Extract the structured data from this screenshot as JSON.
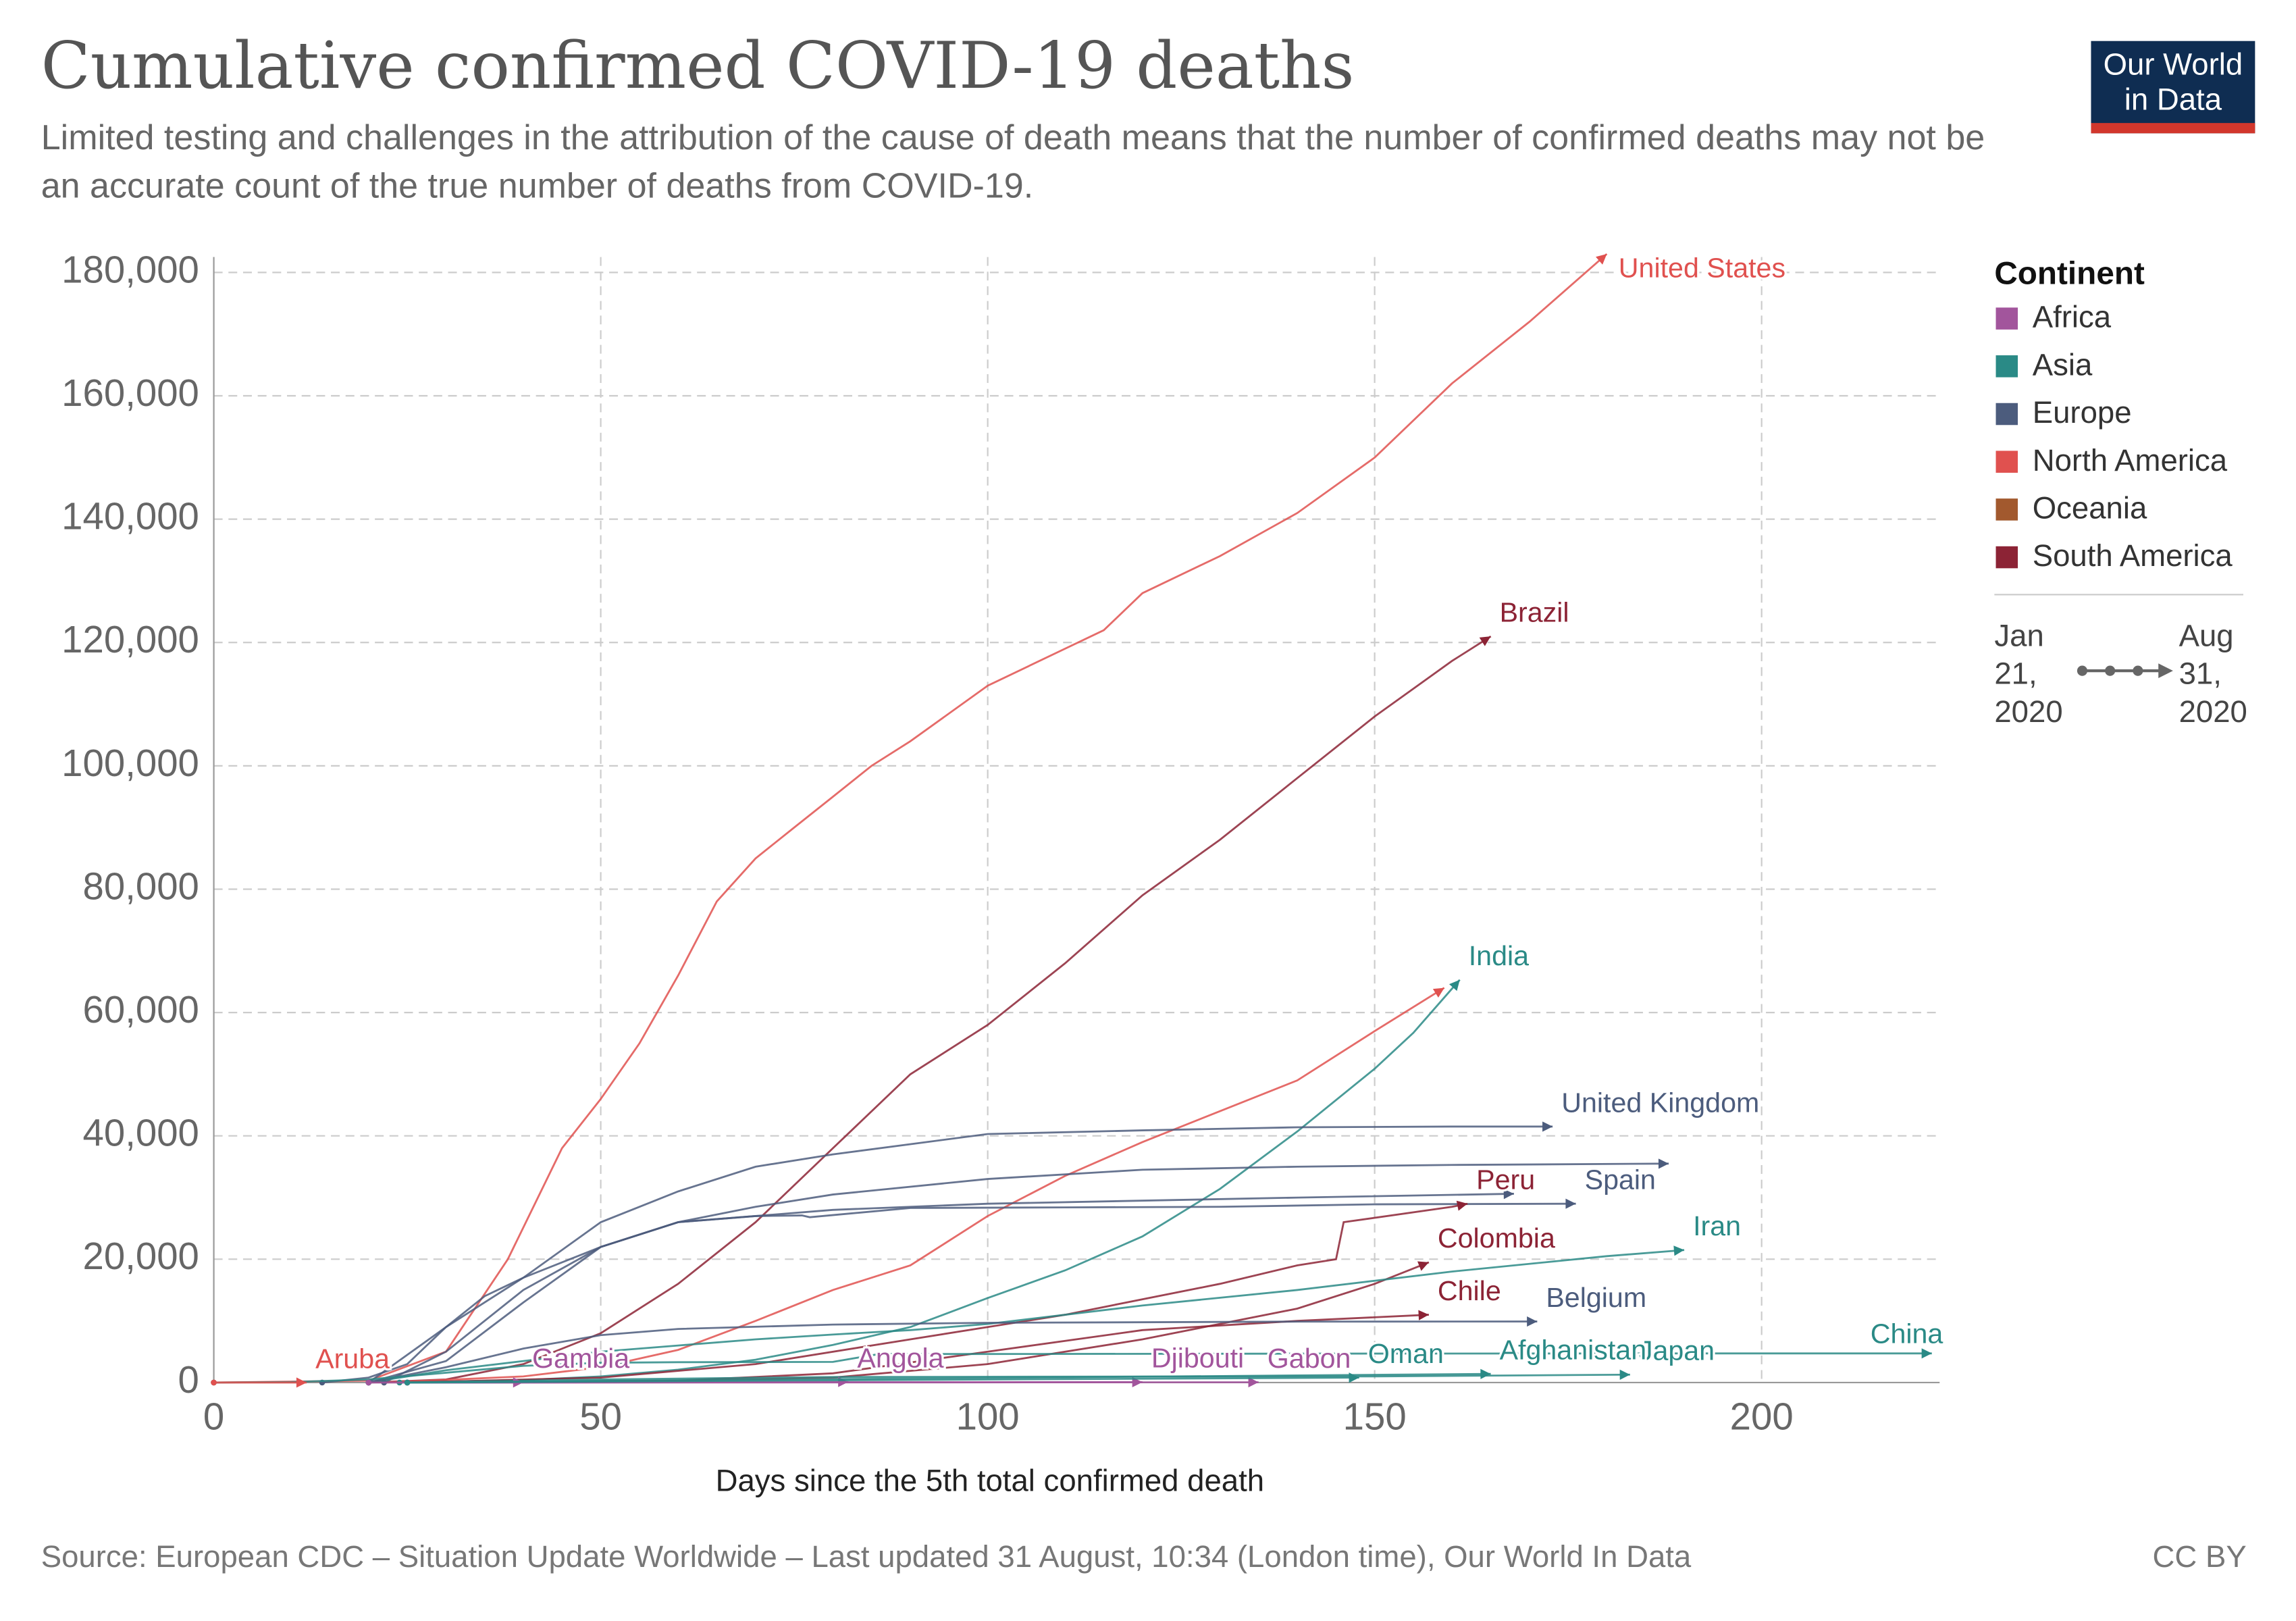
{
  "chart_data": {
    "type": "line",
    "title": "Cumulative confirmed COVID-19 deaths",
    "subtitle": "Limited testing and challenges in the attribution of the cause of death means that the number of confirmed deaths may not be an accurate count of the true number of deaths from COVID-19.",
    "logo": "Our World in Data",
    "xlabel": "Days since the 5th total confirmed death",
    "source": "Source: European CDC – Situation Update Worldwide – Last updated 31 August, 10:34 (London time), Our World In Data",
    "license": "CC BY",
    "xlim": [
      0,
      223
    ],
    "ylim": [
      0,
      182500
    ],
    "xticks": [
      0,
      50,
      100,
      150,
      200
    ],
    "yticks": [
      0,
      {
        "value": 20000,
        "label": "20,000"
      },
      {
        "value": 40000,
        "label": "40,000"
      },
      {
        "value": 60000,
        "label": "60,000"
      },
      {
        "value": 80000,
        "label": "80,000"
      },
      {
        "value": 100000,
        "label": "100,000"
      },
      {
        "value": 120000,
        "label": "120,000"
      },
      {
        "value": 140000,
        "label": "140,000"
      },
      {
        "value": 160000,
        "label": "160,000"
      },
      {
        "value": 180000,
        "label": "180,000"
      }
    ],
    "grid": true,
    "legend": {
      "title": "Continent",
      "items": [
        {
          "name": "Africa",
          "color": "#a2559c"
        },
        {
          "name": "Asia",
          "color": "#2a8a86"
        },
        {
          "name": "Europe",
          "color": "#4c5c7d"
        },
        {
          "name": "North America",
          "color": "#e0514f"
        },
        {
          "name": "Oceania",
          "color": "#a2592e"
        },
        {
          "name": "South America",
          "color": "#8c2335"
        }
      ]
    },
    "time_range": [
      "Jan 21, 2020",
      "Aug 31, 2020"
    ],
    "series": [
      {
        "name": "United States",
        "color": "#e0514f",
        "x": [
          0,
          20,
          30,
          38,
          45,
          50,
          55,
          60,
          65,
          70,
          75,
          80,
          85,
          90,
          100,
          110,
          115,
          120,
          130,
          140,
          150,
          160,
          170,
          180
        ],
        "values": [
          5,
          300,
          5000,
          20000,
          38000,
          46000,
          55000,
          66000,
          78000,
          85000,
          90000,
          95000,
          100000,
          104000,
          113000,
          119000,
          122000,
          128000,
          134000,
          141000,
          150000,
          162000,
          172000,
          183000
        ]
      },
      {
        "name": "Brazil",
        "color": "#8c2335",
        "x": [
          20,
          30,
          40,
          50,
          60,
          70,
          80,
          90,
          100,
          110,
          120,
          130,
          140,
          150,
          160,
          165
        ],
        "values": [
          5,
          500,
          3000,
          8000,
          16000,
          26000,
          38000,
          50000,
          58000,
          68000,
          79000,
          88000,
          98000,
          108000,
          117000,
          121000
        ]
      },
      {
        "color": "#e0514f",
        "x": [
          22,
          40,
          50,
          60,
          70,
          80,
          90,
          100,
          110,
          120,
          130,
          140,
          150,
          159
        ],
        "values": [
          5,
          1000,
          2500,
          5300,
          10000,
          15000,
          19000,
          27000,
          33500,
          39000,
          44000,
          49000,
          57000,
          64000
        ]
      },
      {
        "name": "India",
        "color": "#2a8a86",
        "x": [
          24,
          40,
          50,
          60,
          70,
          80,
          90,
          100,
          110,
          120,
          130,
          140,
          150,
          155,
          161
        ],
        "values": [
          5,
          400,
          1000,
          2100,
          3700,
          6100,
          9000,
          13700,
          18200,
          23700,
          31400,
          40700,
          50900,
          56700,
          65300
        ]
      },
      {
        "name": "United Kingdom",
        "color": "#4c5c7d",
        "x": [
          14,
          20,
          25,
          30,
          35,
          40,
          50,
          60,
          70,
          80,
          100,
          120,
          140,
          160,
          173
        ],
        "values": [
          5,
          800,
          3000,
          9000,
          14000,
          17000,
          26000,
          31000,
          35000,
          37000,
          40300,
          40900,
          41400,
          41500,
          41500
        ]
      },
      {
        "color": "#4c5c7d",
        "x": [
          20,
          30,
          40,
          50,
          60,
          70,
          80,
          100,
          120,
          140,
          160,
          188
        ],
        "values": [
          5,
          9000,
          17000,
          22000,
          26000,
          28500,
          30500,
          33000,
          34500,
          35000,
          35300,
          35500
        ]
      },
      {
        "color": "#4c5c7d",
        "x": [
          20,
          30,
          40,
          50,
          60,
          80,
          100,
          140,
          168
        ],
        "values": [
          5,
          3500,
          13000,
          22000,
          26000,
          28000,
          29000,
          30000,
          30600
        ]
      },
      {
        "name": "Spain",
        "color": "#4c5c7d",
        "x": [
          22,
          30,
          40,
          50,
          60,
          70,
          76,
          77,
          90,
          110,
          130,
          150,
          176
        ],
        "values": [
          5,
          5000,
          15000,
          22000,
          26000,
          27000,
          27100,
          26800,
          28300,
          28400,
          28500,
          28900,
          29000
        ]
      },
      {
        "name": "Peru",
        "color": "#8c2335",
        "x": [
          25,
          50,
          70,
          90,
          110,
          130,
          140,
          145,
          146,
          160,
          162
        ],
        "values": [
          5,
          800,
          3000,
          7000,
          11000,
          16000,
          19000,
          20000,
          26000,
          28500,
          29000
        ]
      },
      {
        "name": "Colombia",
        "color": "#8c2335",
        "x": [
          25,
          60,
          80,
          100,
          120,
          140,
          150,
          157
        ],
        "values": [
          5,
          300,
          800,
          3000,
          7000,
          12000,
          16000,
          19500
        ]
      },
      {
        "name": "Iran",
        "color": "#2a8a86",
        "x": [
          20,
          30,
          40,
          50,
          60,
          70,
          80,
          90,
          100,
          120,
          140,
          160,
          180,
          190
        ],
        "values": [
          5,
          2000,
          3500,
          5000,
          6000,
          7000,
          7800,
          8500,
          9500,
          12500,
          15000,
          18000,
          20500,
          21500
        ]
      },
      {
        "name": "Chile",
        "color": "#8c2335",
        "x": [
          25,
          60,
          80,
          100,
          120,
          140,
          157
        ],
        "values": [
          5,
          300,
          1500,
          5000,
          8500,
          10000,
          11000
        ]
      },
      {
        "name": "Belgium",
        "color": "#4c5c7d",
        "x": [
          20,
          30,
          40,
          50,
          60,
          80,
          100,
          140,
          171
        ],
        "values": [
          5,
          2500,
          5500,
          7700,
          8700,
          9400,
          9700,
          9880,
          9900
        ]
      },
      {
        "name": "China",
        "color": "#2a8a86",
        "x": [
          0,
          10,
          20,
          30,
          40,
          50,
          60,
          80,
          86,
          100,
          150,
          200,
          222
        ],
        "values": [
          5,
          100,
          500,
          1600,
          2700,
          3200,
          3300,
          3340,
          4630,
          4640,
          4700,
          4720,
          4730
        ]
      },
      {
        "name": "Japan",
        "color": "#2a8a86",
        "x": [
          25,
          50,
          80,
          120,
          150,
          183
        ],
        "values": [
          5,
          500,
          900,
          980,
          1000,
          1280
        ]
      },
      {
        "name": "Aruba",
        "color": "#e0514f",
        "x": [
          0,
          3,
          7,
          12
        ],
        "values": [
          1,
          2,
          3,
          3
        ]
      },
      {
        "name": "Gambia",
        "color": "#a2559c",
        "x": [
          20,
          40
        ],
        "values": [
          5,
          20
        ]
      },
      {
        "name": "Angola",
        "color": "#a2559c",
        "x": [
          25,
          82
        ],
        "values": [
          5,
          100
        ]
      },
      {
        "name": "Djibouti",
        "color": "#a2559c",
        "x": [
          25,
          120
        ],
        "values": [
          5,
          60
        ]
      },
      {
        "name": "Gabon",
        "color": "#a2559c",
        "x": [
          25,
          135
        ],
        "values": [
          5,
          50
        ]
      },
      {
        "name": "Oman",
        "color": "#2a8a86",
        "x": [
          25,
          148
        ],
        "values": [
          5,
          800
        ]
      },
      {
        "name": "Afghanistan",
        "color": "#2a8a86",
        "x": [
          25,
          165
        ],
        "values": [
          5,
          1400
        ]
      }
    ]
  }
}
